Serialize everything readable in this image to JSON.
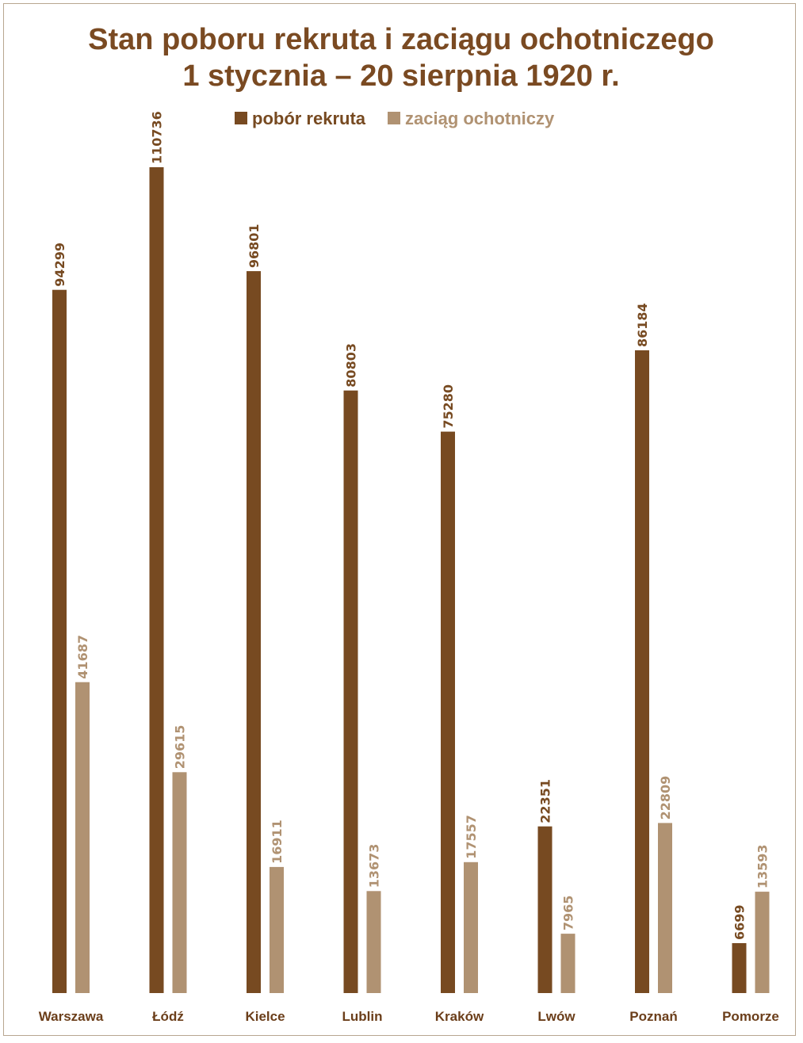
{
  "chart_data": {
    "type": "bar",
    "title": "Stan poboru rekruta i zaciągu ochotniczego",
    "subtitle": "1 stycznia – 20 sierpnia 1920 r.",
    "categories": [
      "Warszawa",
      "Łódź",
      "Kielce",
      "Lublin",
      "Kraków",
      "Lwów",
      "Poznań",
      "Pomorze"
    ],
    "series": [
      {
        "name": "pobór rekruta",
        "color": "#774a21",
        "values": [
          94299,
          110736,
          96801,
          80803,
          75280,
          22351,
          86184,
          6699
        ]
      },
      {
        "name": "zaciąg ochotniczy",
        "color": "#b09272",
        "values": [
          41687,
          29615,
          16911,
          13673,
          17557,
          7965,
          22809,
          13593
        ]
      }
    ],
    "legend": "top-center",
    "grid": false,
    "ylim": [
      0,
      110736
    ]
  }
}
